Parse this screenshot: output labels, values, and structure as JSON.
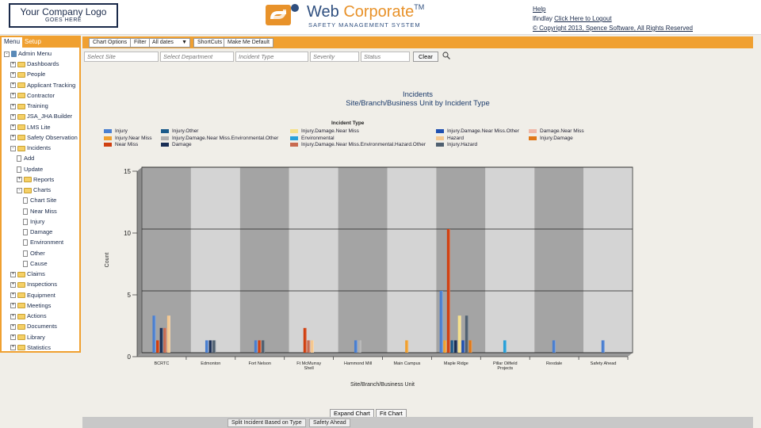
{
  "header": {
    "logo_line1": "Your Company Logo",
    "logo_line2": "GOES HERE",
    "brand_web": "Web",
    "brand_corp": "Corporate",
    "brand_tm": "TM",
    "brand_sub": "SAFETY MANAGEMENT SYSTEM",
    "help_link": "Help",
    "user": "lfindlay",
    "logout_link": "Click Here to Logout",
    "copyright": "© Copyright 2013, Spence Software, All Rights Reserved"
  },
  "sidebar": {
    "tabs": [
      "Menu",
      "Setup"
    ],
    "root": "Admin Menu",
    "items": [
      {
        "label": "Dashboards",
        "level": 1,
        "type": "folder",
        "pm": "+"
      },
      {
        "label": "People",
        "level": 1,
        "type": "folder",
        "pm": "+"
      },
      {
        "label": "Applicant Tracking",
        "level": 1,
        "type": "folder",
        "pm": "+"
      },
      {
        "label": "Contractor",
        "level": 1,
        "type": "folder",
        "pm": "+"
      },
      {
        "label": "Training",
        "level": 1,
        "type": "folder",
        "pm": "+"
      },
      {
        "label": "JSA_JHA Builder",
        "level": 1,
        "type": "folder",
        "pm": "+"
      },
      {
        "label": "LMS Lite",
        "level": 1,
        "type": "folder",
        "pm": "+"
      },
      {
        "label": "Safety Observation",
        "level": 1,
        "type": "folder",
        "pm": "+"
      },
      {
        "label": "Incidents",
        "level": 1,
        "type": "folder",
        "pm": "-"
      },
      {
        "label": "Add",
        "level": 2,
        "type": "page"
      },
      {
        "label": "Update",
        "level": 2,
        "type": "page"
      },
      {
        "label": "Reports",
        "level": 2,
        "type": "folder",
        "pm": "+"
      },
      {
        "label": "Charts",
        "level": 2,
        "type": "folder",
        "pm": "-"
      },
      {
        "label": "Chart Site",
        "level": 3,
        "type": "page"
      },
      {
        "label": "Near Miss",
        "level": 3,
        "type": "page"
      },
      {
        "label": "Injury",
        "level": 3,
        "type": "page"
      },
      {
        "label": "Damage",
        "level": 3,
        "type": "page"
      },
      {
        "label": "Environment",
        "level": 3,
        "type": "page"
      },
      {
        "label": "Other",
        "level": 3,
        "type": "page"
      },
      {
        "label": "Cause",
        "level": 3,
        "type": "page"
      },
      {
        "label": "Claims",
        "level": 1,
        "type": "folder",
        "pm": "+"
      },
      {
        "label": "Inspections",
        "level": 1,
        "type": "folder",
        "pm": "+"
      },
      {
        "label": "Equipment",
        "level": 1,
        "type": "folder",
        "pm": "+"
      },
      {
        "label": "Meetings",
        "level": 1,
        "type": "folder",
        "pm": "+"
      },
      {
        "label": "Actions",
        "level": 1,
        "type": "folder",
        "pm": "+"
      },
      {
        "label": "Documents",
        "level": 1,
        "type": "folder",
        "pm": "+"
      },
      {
        "label": "Library",
        "level": 1,
        "type": "folder",
        "pm": "+"
      },
      {
        "label": "Statistics",
        "level": 1,
        "type": "folder",
        "pm": "+"
      }
    ]
  },
  "toolbar": {
    "chart_options": "Chart Options",
    "filter": "Filter",
    "dates_value": "All dates",
    "shortcuts": "ShortCuts",
    "make_default": "Make Me Default"
  },
  "filters": {
    "site_placeholder": "Select Site",
    "department_placeholder": "Select Department",
    "incident_type_placeholder": "Incident Type",
    "severity_placeholder": "Severity",
    "status_placeholder": "Status",
    "clear": "Clear"
  },
  "bottom": {
    "expand_chart": "Expand Chart",
    "fit_chart": "Fit Chart",
    "tab_split": "Split Incident Based on Type",
    "tab_site": "Safety Ahead"
  },
  "chart_data": {
    "type": "bar",
    "title": "Incidents",
    "subtitle": "Site/Branch/Business Unit by Incident Type",
    "legend_title": "Incident Type",
    "xlabel": "Site/Branch/Business Unit",
    "ylabel": "Count",
    "ylim": [
      0,
      15
    ],
    "yticks": [
      0,
      5,
      10,
      15
    ],
    "grid": true,
    "legend_position": "top",
    "categories": [
      "BCRTC",
      "Edmonton",
      "Fort Nelson",
      "Ft McMurray Shell",
      "Hammond Mill",
      "Main Campus",
      "Maple Ridge",
      "Pillar Oilfield Projects",
      "Rexdale",
      "Safety Ahead"
    ],
    "series": [
      {
        "name": "Injury",
        "color": "#4a7fd0",
        "values": [
          3,
          1,
          1,
          0,
          1,
          0,
          5,
          0,
          1,
          1
        ]
      },
      {
        "name": "Injury.Near Miss",
        "color": "#f0a030",
        "values": [
          0,
          0,
          0,
          0,
          0,
          1,
          1,
          0,
          0,
          0
        ]
      },
      {
        "name": "Near Miss",
        "color": "#d04010",
        "values": [
          1,
          0,
          1,
          2,
          0,
          0,
          10,
          0,
          0,
          0
        ]
      },
      {
        "name": "Injury.Other",
        "color": "#1a5a8a",
        "values": [
          0,
          0,
          0,
          0,
          0,
          0,
          1,
          0,
          0,
          0
        ]
      },
      {
        "name": "Injury.Damage.Near Miss.Environmental.Other",
        "color": "#b0b0b0",
        "values": [
          0,
          0,
          0,
          0,
          1,
          0,
          0,
          0,
          0,
          0
        ]
      },
      {
        "name": "Damage",
        "color": "#1a2e55",
        "values": [
          2,
          1,
          0,
          0,
          0,
          0,
          1,
          0,
          0,
          0
        ]
      },
      {
        "name": "Injury.Damage.Near Miss",
        "color": "#f5e08a",
        "values": [
          0,
          0,
          0,
          0,
          0,
          0,
          3,
          0,
          0,
          0
        ]
      },
      {
        "name": "Environmental",
        "color": "#2aa0d8",
        "values": [
          0,
          0,
          0,
          0,
          0,
          0,
          0,
          1,
          0,
          0
        ]
      },
      {
        "name": "Injury.Damage.Near Miss.Environmental.Hazard.Other",
        "color": "#c86a50",
        "values": [
          2,
          0,
          0,
          1,
          0,
          0,
          0,
          0,
          0,
          0
        ]
      },
      {
        "name": "Injury.Damage.Near Miss.Other",
        "color": "#2050b0",
        "values": [
          0,
          0,
          0,
          0,
          0,
          0,
          1,
          0,
          0,
          0
        ]
      },
      {
        "name": "Hazard",
        "color": "#f5c890",
        "values": [
          3,
          0,
          0,
          1,
          0,
          0,
          0,
          0,
          0,
          0
        ]
      },
      {
        "name": "Injury.Hazard",
        "color": "#506070",
        "values": [
          0,
          1,
          1,
          0,
          0,
          0,
          3,
          0,
          0,
          0
        ]
      },
      {
        "name": "Damage.Near Miss",
        "color": "#f0b8a8",
        "values": [
          0,
          0,
          0,
          0,
          0,
          0,
          0,
          0,
          0,
          0
        ]
      },
      {
        "name": "Injury.Damage",
        "color": "#e07818",
        "values": [
          0,
          0,
          0,
          0,
          0,
          0,
          1,
          0,
          0,
          0
        ]
      }
    ]
  }
}
